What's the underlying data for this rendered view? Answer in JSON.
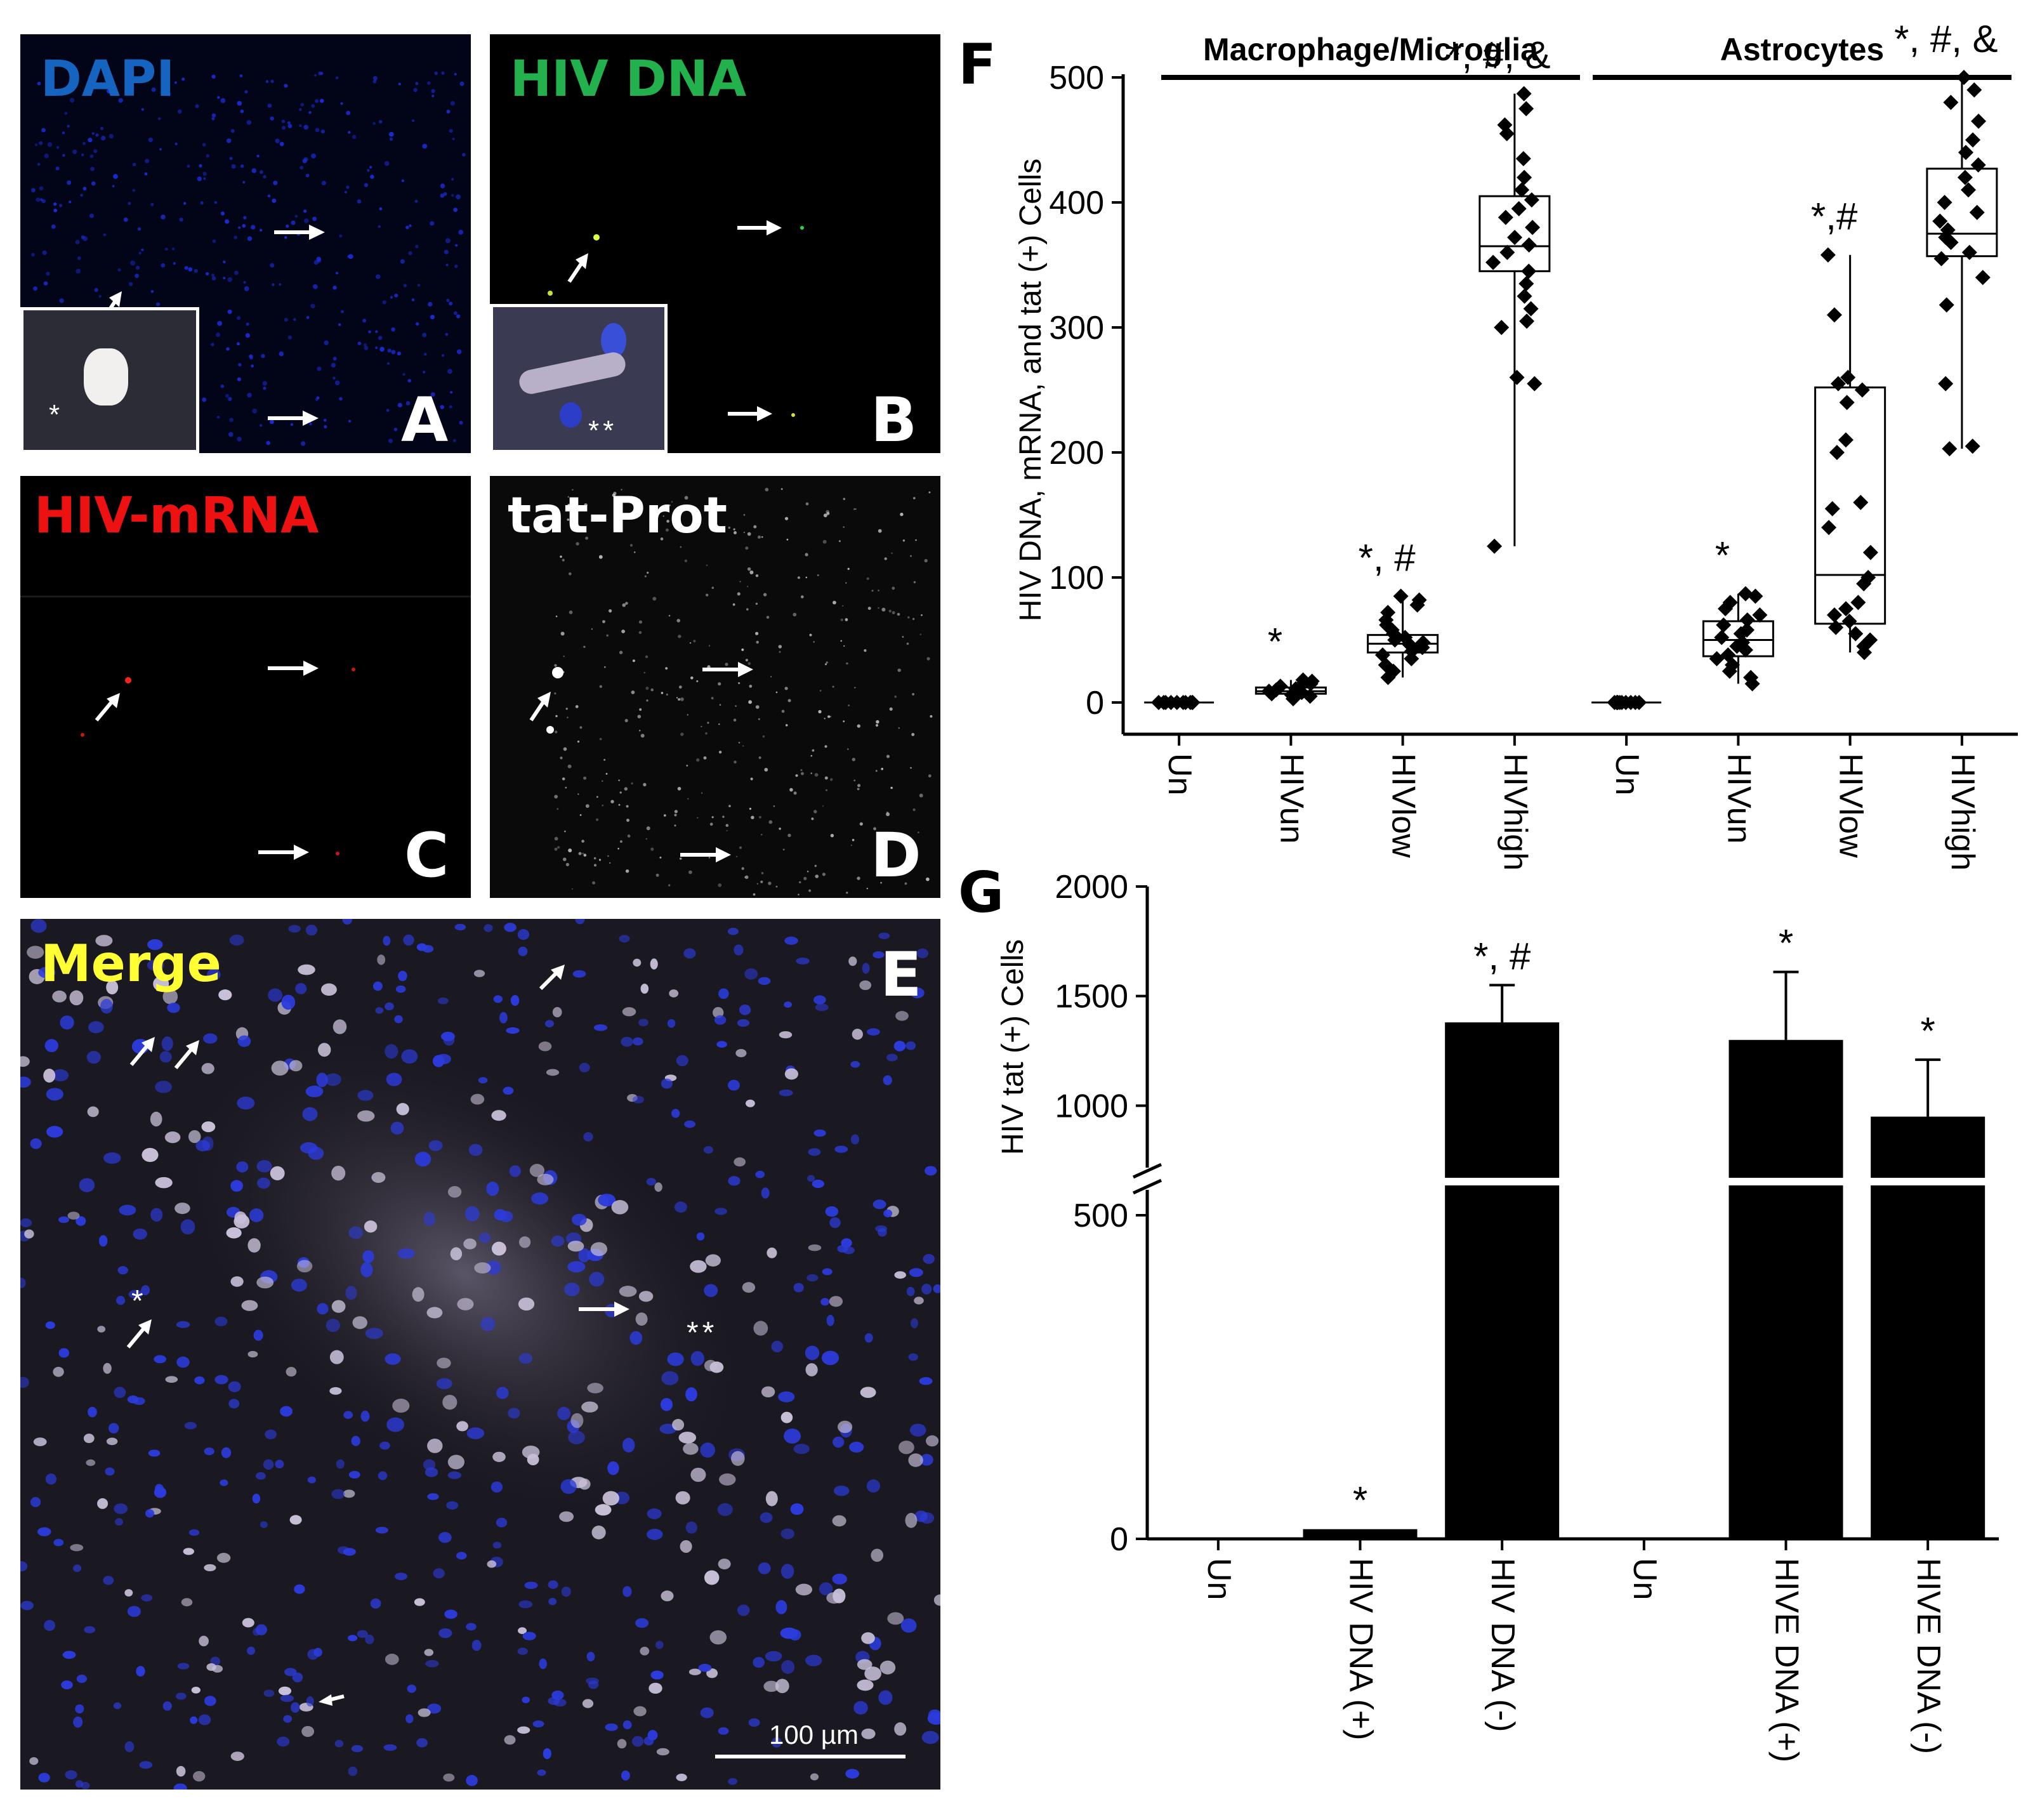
{
  "panels": {
    "A": {
      "letter": "A",
      "label": "DAPI",
      "label_color": "#1565c0",
      "inset_mark": "*"
    },
    "B": {
      "letter": "B",
      "label": "HIV DNA",
      "label_color": "#22b14c",
      "inset_mark": "**"
    },
    "C": {
      "letter": "C",
      "label": "HIV-mRNA",
      "label_color": "#ee1111"
    },
    "D": {
      "letter": "D",
      "label": "tat-Prot",
      "label_color": "#ffffff"
    },
    "E": {
      "letter": "E",
      "label": "Merge",
      "label_color": "#ffff33",
      "marks": [
        "*",
        "**"
      ],
      "scale_bar": "100 µm"
    }
  },
  "figure_letters": {
    "F": "F",
    "G": "G"
  },
  "chart_data": [
    {
      "id": "F",
      "type": "box",
      "title": "",
      "ylabel": "HIV DNA, mRNA, and tat (+) Cells",
      "ylim": [
        0,
        500
      ],
      "yticks": [
        "0",
        "100",
        "200",
        "300",
        "400",
        "500"
      ],
      "groups": [
        {
          "label": "Macrophage/Microglia",
          "categories": [
            "Un",
            "HIVun",
            "HIVlow",
            "HIVhigh"
          ]
        },
        {
          "label": "Astrocytes",
          "categories": [
            "Un",
            "HIVun",
            "HIVlow",
            "HIVhigh"
          ]
        }
      ],
      "categories": [
        "Un",
        "HIVun",
        "HIVlow",
        "HIVhigh",
        "Un",
        "HIVun",
        "HIVlow",
        "HIVhigh"
      ],
      "boxes": [
        {
          "q1": 0,
          "median": 0,
          "q3": 0,
          "min": 0,
          "max": 0,
          "mean": 0
        },
        {
          "q1": 7,
          "median": 9,
          "q3": 12,
          "min": 3,
          "max": 18,
          "mean": 9
        },
        {
          "q1": 40,
          "median": 47,
          "q3": 54,
          "min": 20,
          "max": 85,
          "mean": 47
        },
        {
          "q1": 345,
          "median": 365,
          "q3": 405,
          "min": 125,
          "max": 487,
          "mean": 366
        },
        {
          "q1": 0,
          "median": 0,
          "q3": 0,
          "min": 0,
          "max": 0,
          "mean": 0
        },
        {
          "q1": 37,
          "median": 50,
          "q3": 65,
          "min": 15,
          "max": 87,
          "mean": 51
        },
        {
          "q1": 63,
          "median": 102,
          "q3": 252,
          "min": 40,
          "max": 358,
          "mean": 143
        },
        {
          "q1": 357,
          "median": 375,
          "q3": 427,
          "min": 203,
          "max": 500,
          "mean": 378
        }
      ],
      "points": [
        [
          0,
          0,
          0,
          0,
          0,
          0,
          0,
          0,
          0,
          0
        ],
        [
          3,
          5,
          6,
          7,
          8,
          9,
          10,
          11,
          12,
          13,
          15,
          17,
          18
        ],
        [
          20,
          25,
          30,
          35,
          38,
          41,
          44,
          46,
          48,
          50,
          52,
          55,
          58,
          62,
          66,
          72,
          78,
          82,
          85
        ],
        [
          125,
          255,
          260,
          300,
          305,
          315,
          325,
          335,
          345,
          352,
          360,
          366,
          372,
          380,
          388,
          395,
          402,
          410,
          420,
          435,
          455,
          462,
          475,
          487
        ],
        [
          0,
          0,
          0,
          0,
          0,
          0,
          0,
          0,
          0,
          0
        ],
        [
          15,
          20,
          25,
          30,
          35,
          38,
          42,
          45,
          48,
          52,
          55,
          58,
          62,
          66,
          70,
          75,
          80,
          85,
          87
        ],
        [
          40,
          45,
          50,
          55,
          60,
          65,
          70,
          75,
          80,
          95,
          100,
          120,
          140,
          155,
          160,
          200,
          210,
          240,
          250,
          255,
          260,
          310,
          358
        ],
        [
          203,
          205,
          255,
          318,
          340,
          355,
          360,
          368,
          372,
          378,
          385,
          392,
          400,
          410,
          420,
          430,
          440,
          450,
          465,
          480,
          490,
          500
        ]
      ],
      "annotations": [
        "",
        "*",
        "*, #",
        "*, #, &",
        "",
        "*",
        "*,#",
        "*, #, &"
      ]
    },
    {
      "id": "G",
      "type": "bar",
      "title": "",
      "ylabel": "HIV tat  (+) Cells",
      "yticks": [
        "0",
        "500",
        "1000",
        "1500",
        "2000"
      ],
      "axis_break": true,
      "categories": [
        "Un",
        "HIV DNA (+)",
        "HIV DNA (-)",
        "Un",
        "HIVE DNA (+)",
        "HIVE DNA (-)"
      ],
      "values": [
        0,
        15,
        1380,
        0,
        1300,
        950
      ],
      "errors": [
        0,
        0,
        170,
        0,
        310,
        260
      ],
      "annotations": [
        "",
        "*",
        "*, #",
        "",
        "*",
        "*"
      ]
    }
  ]
}
